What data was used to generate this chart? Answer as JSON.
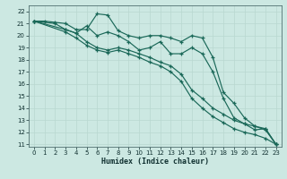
{
  "xlabel": "Humidex (Indice chaleur)",
  "bg_color": "#cce8e2",
  "grid_color": "#b8d8d0",
  "line_color": "#1a6858",
  "xlim": [
    -0.5,
    23.5
  ],
  "ylim": [
    10.8,
    22.5
  ],
  "yticks": [
    11,
    12,
    13,
    14,
    15,
    16,
    17,
    18,
    19,
    20,
    21,
    22
  ],
  "xticks": [
    0,
    1,
    2,
    3,
    4,
    5,
    6,
    7,
    8,
    9,
    10,
    11,
    12,
    13,
    14,
    15,
    16,
    17,
    18,
    19,
    20,
    21,
    22,
    23
  ],
  "line1_x": [
    0,
    1,
    2,
    3,
    4,
    5,
    6,
    7,
    8,
    9,
    10,
    11,
    12,
    13,
    14,
    15,
    16,
    17,
    18,
    19,
    20,
    21,
    22,
    23
  ],
  "line1_y": [
    21.2,
    21.2,
    21.1,
    21.0,
    20.5,
    20.5,
    21.8,
    21.7,
    20.4,
    20.0,
    19.8,
    20.0,
    20.0,
    19.8,
    19.5,
    20.0,
    19.8,
    18.2,
    15.3,
    14.4,
    13.2,
    12.5,
    12.3,
    11.0
  ],
  "line2_x": [
    0,
    2,
    3,
    4,
    5,
    6,
    7,
    8,
    9,
    10,
    11,
    12,
    13,
    14,
    15,
    16,
    17,
    18,
    19,
    20,
    21,
    22,
    23
  ],
  "line2_y": [
    21.2,
    21.0,
    20.5,
    20.2,
    20.8,
    20.0,
    20.3,
    20.0,
    19.5,
    18.8,
    19.0,
    19.5,
    18.5,
    18.5,
    19.0,
    18.5,
    17.0,
    14.8,
    13.2,
    12.7,
    12.2,
    12.3,
    11.0
  ],
  "line3_x": [
    0,
    3,
    4,
    5,
    6,
    7,
    8,
    9,
    10,
    11,
    12,
    13,
    14,
    15,
    16,
    17,
    18,
    19,
    20,
    21,
    22,
    23
  ],
  "line3_y": [
    21.2,
    20.5,
    20.2,
    19.5,
    19.0,
    18.8,
    19.0,
    18.8,
    18.5,
    18.2,
    17.8,
    17.5,
    16.8,
    15.5,
    14.8,
    14.0,
    13.5,
    13.0,
    12.7,
    12.5,
    12.2,
    11.0
  ],
  "line4_x": [
    0,
    3,
    4,
    5,
    6,
    7,
    8,
    9,
    10,
    11,
    12,
    13,
    14,
    15,
    16,
    17,
    18,
    19,
    20,
    21,
    22,
    23
  ],
  "line4_y": [
    21.2,
    20.3,
    19.8,
    19.2,
    18.8,
    18.6,
    18.8,
    18.5,
    18.2,
    17.8,
    17.5,
    17.0,
    16.2,
    14.8,
    14.0,
    13.3,
    12.8,
    12.3,
    12.0,
    11.8,
    11.5,
    11.0
  ]
}
